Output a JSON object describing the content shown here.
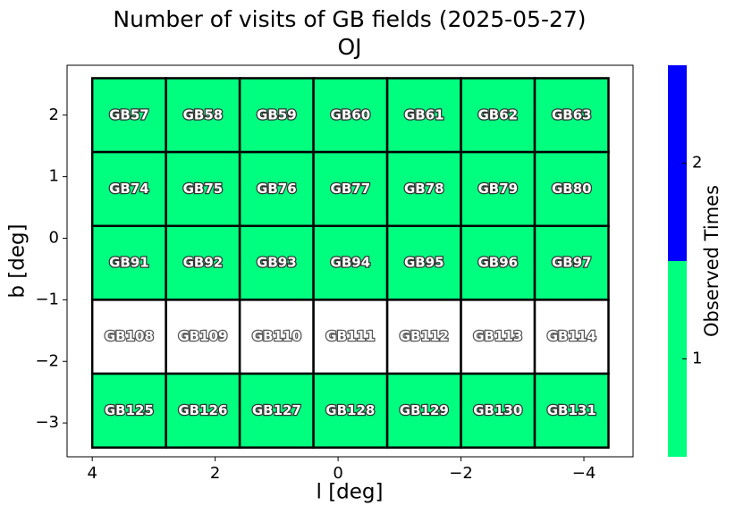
{
  "chart_data": {
    "type": "field_grid",
    "title": "Number of visits of GB fields (2025-05-27)",
    "subtitle": "OJ",
    "xlabel": "l [deg]",
    "ylabel": "b [deg]",
    "xlim": [
      4.41,
      -4.8
    ],
    "ylim": [
      -3.55,
      2.81
    ],
    "xticks": [
      4,
      2,
      0,
      {
        "value": -2,
        "label": "−2"
      },
      {
        "value": -4,
        "label": "−4"
      }
    ],
    "yticks": [
      2,
      1,
      0,
      {
        "value": -1,
        "label": "−1"
      },
      {
        "value": -2,
        "label": "−2"
      },
      {
        "value": -3,
        "label": "−3"
      }
    ],
    "l_edges": [
      4,
      2.8,
      1.6,
      0.4,
      -0.8,
      -2,
      -3.2,
      -4.4
    ],
    "b_edges": [
      2.6,
      1.4,
      0.2,
      -1.0,
      -2.2,
      -3.4
    ],
    "fields": [
      [
        "GB57",
        "GB58",
        "GB59",
        "GB60",
        "GB61",
        "GB62",
        "GB63"
      ],
      [
        "GB74",
        "GB75",
        "GB76",
        "GB77",
        "GB78",
        "GB79",
        "GB80"
      ],
      [
        "GB91",
        "GB92",
        "GB93",
        "GB94",
        "GB95",
        "GB96",
        "GB97"
      ],
      [
        "GB108",
        "GB109",
        "GB110",
        "GB111",
        "GB112",
        "GB113",
        "GB114"
      ],
      [
        "GB125",
        "GB126",
        "GB127",
        "GB128",
        "GB129",
        "GB130",
        "GB131"
      ]
    ],
    "values": [
      [
        1,
        1,
        1,
        1,
        1,
        1,
        1
      ],
      [
        1,
        1,
        1,
        1,
        1,
        1,
        1
      ],
      [
        1,
        1,
        1,
        1,
        1,
        1,
        1
      ],
      [
        0,
        0,
        0,
        0,
        0,
        0,
        0
      ],
      [
        1,
        1,
        1,
        1,
        1,
        1,
        1
      ]
    ],
    "empty_color": "#ffffff",
    "colorbar": {
      "label": "Observed Times",
      "lim": [
        0.5,
        2.5
      ],
      "ticks": [
        1,
        2
      ],
      "colors": [
        "#00ff7f",
        "#0000ff"
      ]
    }
  }
}
